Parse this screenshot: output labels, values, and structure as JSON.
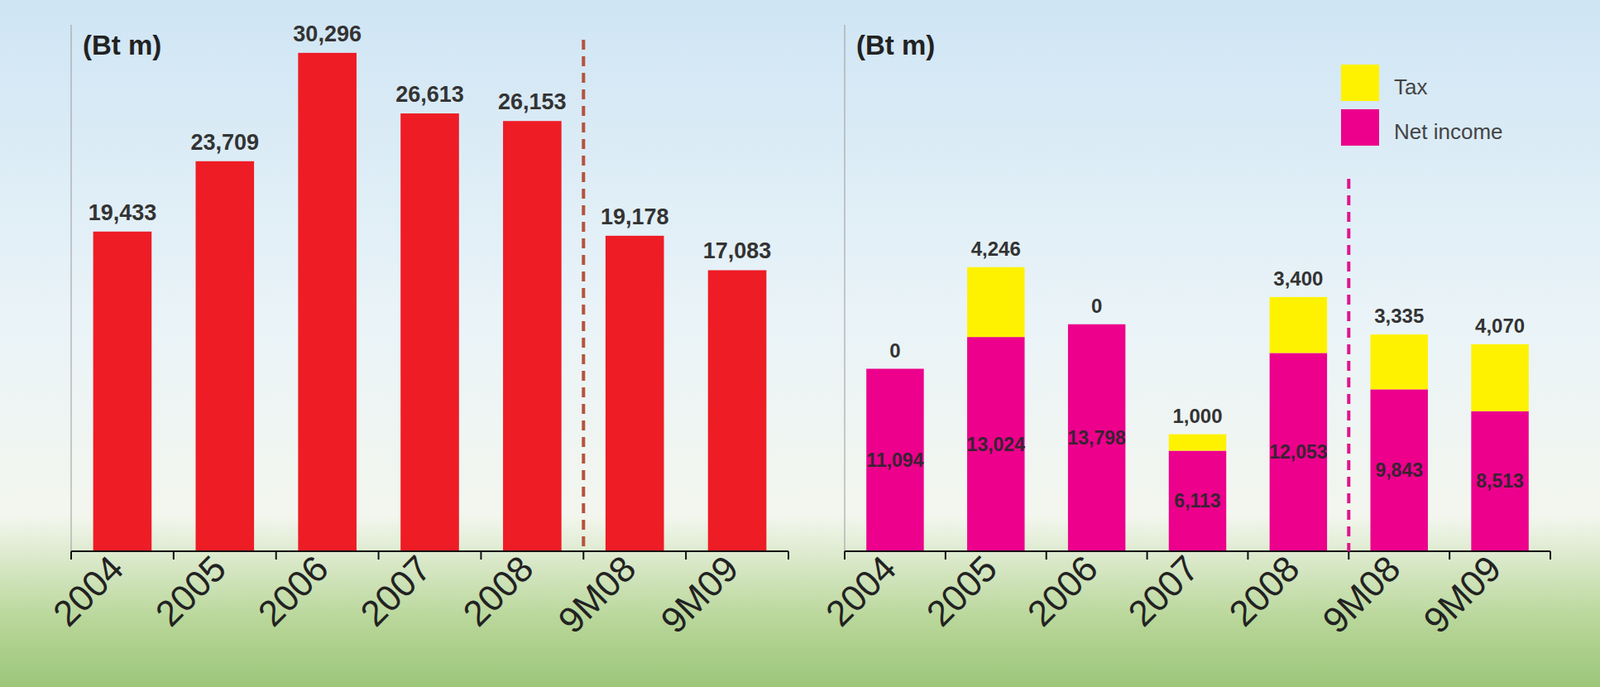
{
  "chart_data": [
    {
      "type": "bar",
      "ylabel": "(Bt m)",
      "categories": [
        "2004",
        "2005",
        "2006",
        "2007",
        "2008",
        "9M08",
        "9M09"
      ],
      "values": [
        19433,
        23709,
        30296,
        26613,
        26153,
        19178,
        17083
      ],
      "value_labels": [
        "19,433",
        "23,709",
        "30,296",
        "26,613",
        "26,153",
        "19,178",
        "17,083"
      ],
      "color": "#ee1c25",
      "ylim": [
        0,
        32000
      ],
      "yticks": [],
      "data_labels": true,
      "tick_labels": "x",
      "grid": false
    },
    {
      "type": "bar",
      "ylabel": "(Bt m)",
      "stacked": true,
      "categories": [
        "2004",
        "2005",
        "2006",
        "2007",
        "2008",
        "9M08",
        "9M09"
      ],
      "series": [
        {
          "name": "Net income",
          "color": "#ec008c",
          "values": [
            11094,
            13024,
            13798,
            6113,
            12053,
            9843,
            8513
          ],
          "value_labels": [
            "11,094",
            "13,024",
            "13,798",
            "6,113",
            "12,053",
            "9,843",
            "8,513"
          ]
        },
        {
          "name": "Tax",
          "color": "#fff200",
          "values": [
            0,
            4246,
            0,
            1000,
            3400,
            3335,
            4070
          ],
          "value_labels": [
            "0",
            "4,246",
            "0",
            "1,000",
            "3,400",
            "3,335",
            "4,070"
          ]
        }
      ],
      "ylim": [
        0,
        32000
      ],
      "yticks": [],
      "data_labels": true,
      "tick_labels": "x",
      "legend": "upper right",
      "grid": false
    }
  ]
}
